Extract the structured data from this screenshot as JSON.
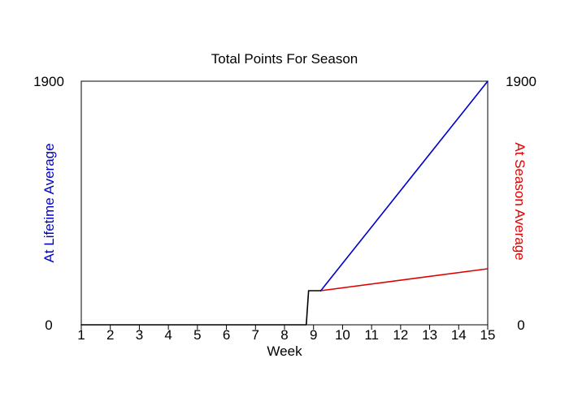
{
  "chart_data": {
    "type": "line",
    "title": "Total Points For Season",
    "xlabel": "Week",
    "ylabel_left": "At Lifetime Average",
    "ylabel_right": "At Season Average",
    "xlim": [
      1,
      15
    ],
    "ylim": [
      0,
      1900
    ],
    "x_ticks": [
      "1",
      "2",
      "3",
      "4",
      "5",
      "6",
      "7",
      "8",
      "9",
      "10",
      "11",
      "12",
      "13",
      "14",
      "15"
    ],
    "y_tick_labels_left": [
      "0",
      "1900"
    ],
    "y_tick_labels_right": [
      "0",
      "1900"
    ],
    "grid": false,
    "legend": "none",
    "series": [
      {
        "color": "#0000cc",
        "x": [
          9.25,
          15
        ],
        "y": [
          266,
          1900
        ]
      },
      {
        "color": "#dd0000",
        "x": [
          9.25,
          15
        ],
        "y": [
          266,
          437
        ]
      },
      {
        "color": "#000000",
        "x": [
          1,
          8.75,
          8.83,
          9.25
        ],
        "y": [
          0,
          0,
          266,
          266
        ]
      }
    ],
    "colors": {
      "left_label": "#0000cc",
      "right_label": "#dd0000",
      "axis": "#000000"
    }
  }
}
